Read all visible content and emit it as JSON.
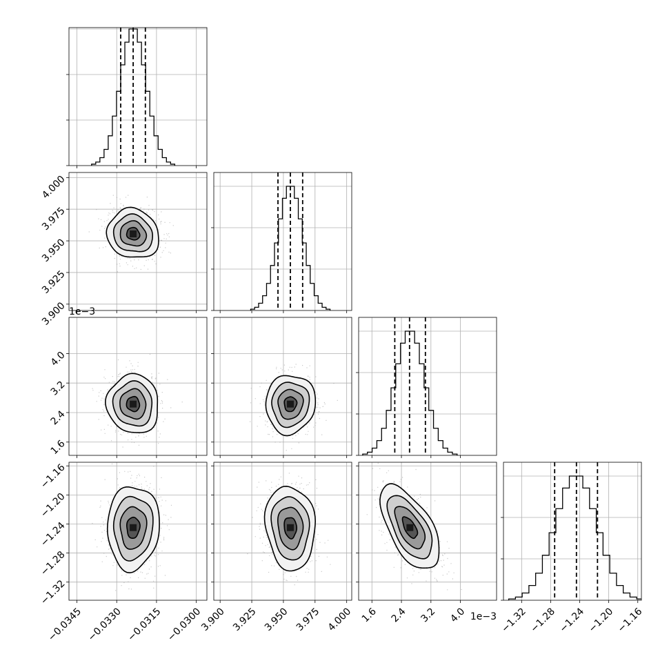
{
  "chart_data": {
    "type": "corner",
    "parameters": [
      {
        "range": [
          -0.0348,
          -0.0296
        ],
        "ticks": [
          -0.0345,
          -0.033,
          -0.0315,
          -0.03
        ],
        "tick_labels": [
          "−0.0345",
          "−0.0330",
          "−0.0315",
          "−0.0300"
        ],
        "offset_text": "",
        "quantiles": [
          -0.03285,
          -0.03238,
          -0.03192
        ],
        "mean": -0.03238,
        "sd": 0.00049,
        "hist_peak": 0.99
      },
      {
        "range": [
          3.895,
          4.004
        ],
        "ticks": [
          3.9,
          3.925,
          3.95,
          3.975,
          4.0
        ],
        "tick_labels": [
          "3.900",
          "3.925",
          "3.950",
          "3.975",
          "4.000"
        ],
        "offset_text": "",
        "quantiles": [
          3.9457,
          3.9555,
          3.9652
        ],
        "mean": 3.9555,
        "sd": 0.0098,
        "hist_peak": 0.9
      },
      {
        "range": [
          1.24,
          4.98
        ],
        "ticks": [
          1.6,
          2.4,
          3.2,
          4.0
        ],
        "tick_labels": [
          "1.6",
          "2.4",
          "3.2",
          "4.0"
        ],
        "offset_text": "1e−3",
        "quantiles": [
          2.22,
          2.62,
          3.05
        ],
        "mean": 2.63,
        "sd": 0.4,
        "hist_peak": 0.9
      },
      {
        "range": [
          -1.345,
          -1.155
        ],
        "ticks": [
          -1.32,
          -1.28,
          -1.24,
          -1.2,
          -1.16
        ],
        "tick_labels": [
          "−1.32",
          "−1.28",
          "−1.24",
          "−1.20",
          "−1.16"
        ],
        "offset_text": "",
        "quantiles": [
          -1.2745,
          -1.2445,
          -1.2155
        ],
        "mean": -1.245,
        "sd": 0.029,
        "hist_peak": 0.9
      }
    ],
    "correlations": [
      {
        "row": 1,
        "col": 0,
        "rho": -0.1
      },
      {
        "row": 2,
        "col": 0,
        "rho": -0.05
      },
      {
        "row": 2,
        "col": 1,
        "rho": 0.05
      },
      {
        "row": 3,
        "col": 0,
        "rho": 0.05
      },
      {
        "row": 3,
        "col": 1,
        "rho": -0.1
      },
      {
        "row": 3,
        "col": 2,
        "rho": -0.6
      }
    ],
    "grid": true,
    "quantile_lines": "dashed",
    "density_levels": 4,
    "colors": {
      "line": "#000000",
      "grid": "#b0b0b0",
      "scatter": "#9a9a9a",
      "density": "#000000"
    }
  }
}
